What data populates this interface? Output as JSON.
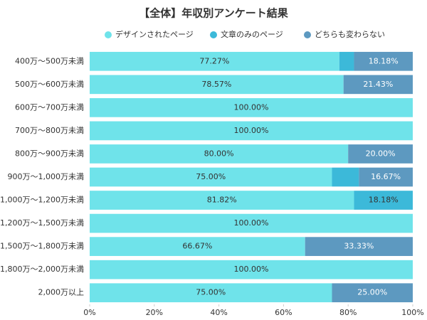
{
  "chart_data": {
    "type": "stacked-bar-horizontal",
    "title": "【全体】年収別アンケート結果",
    "categories": [
      "400万〜500万未満",
      "500万〜600万未満",
      "600万〜700万未満",
      "700万〜800万未満",
      "800万〜900万未満",
      "900万〜1,000万未満",
      "1,000万〜1,200万未満",
      "1,200万〜1,500万未満",
      "1,500万〜1,800万未満",
      "1,800万〜2,000万未満",
      "2,000万以上"
    ],
    "series": [
      {
        "name": "デザインされたページ",
        "color": "#6fe3ea",
        "values": [
          77.27,
          78.57,
          100,
          100,
          80,
          75,
          81.82,
          100,
          66.67,
          100,
          75
        ],
        "value_labels": [
          "77.27%",
          "78.57%",
          "100.00%",
          "100.00%",
          "80.00%",
          "75.00%",
          "81.82%",
          "100.00%",
          "66.67%",
          "100.00%",
          "75.00%"
        ]
      },
      {
        "name": "文章のみのページ",
        "color": "#3cb9d9",
        "values": [
          4.55,
          0,
          0,
          0,
          0,
          8.33,
          18.18,
          0,
          0,
          0,
          0
        ],
        "value_labels": [
          null,
          null,
          null,
          null,
          null,
          null,
          "18.18%",
          null,
          null,
          null,
          null
        ]
      },
      {
        "name": "どちらも変わらない",
        "color": "#5d99c0",
        "values": [
          18.18,
          21.43,
          0,
          0,
          20,
          16.67,
          0,
          0,
          33.33,
          0,
          25
        ],
        "value_labels": [
          "18.18%",
          "21.43%",
          null,
          null,
          "20.00%",
          "16.67%",
          null,
          null,
          "33.33%",
          null,
          "25.00%"
        ]
      }
    ],
    "xlim": [
      0,
      100
    ],
    "xticks": [
      {
        "value": 0,
        "label": "0%"
      },
      {
        "value": 20,
        "label": "20%"
      },
      {
        "value": 40,
        "label": "40%"
      },
      {
        "value": 60,
        "label": "60%"
      },
      {
        "value": 80,
        "label": "80%"
      },
      {
        "value": 100,
        "label": "100%"
      }
    ]
  }
}
